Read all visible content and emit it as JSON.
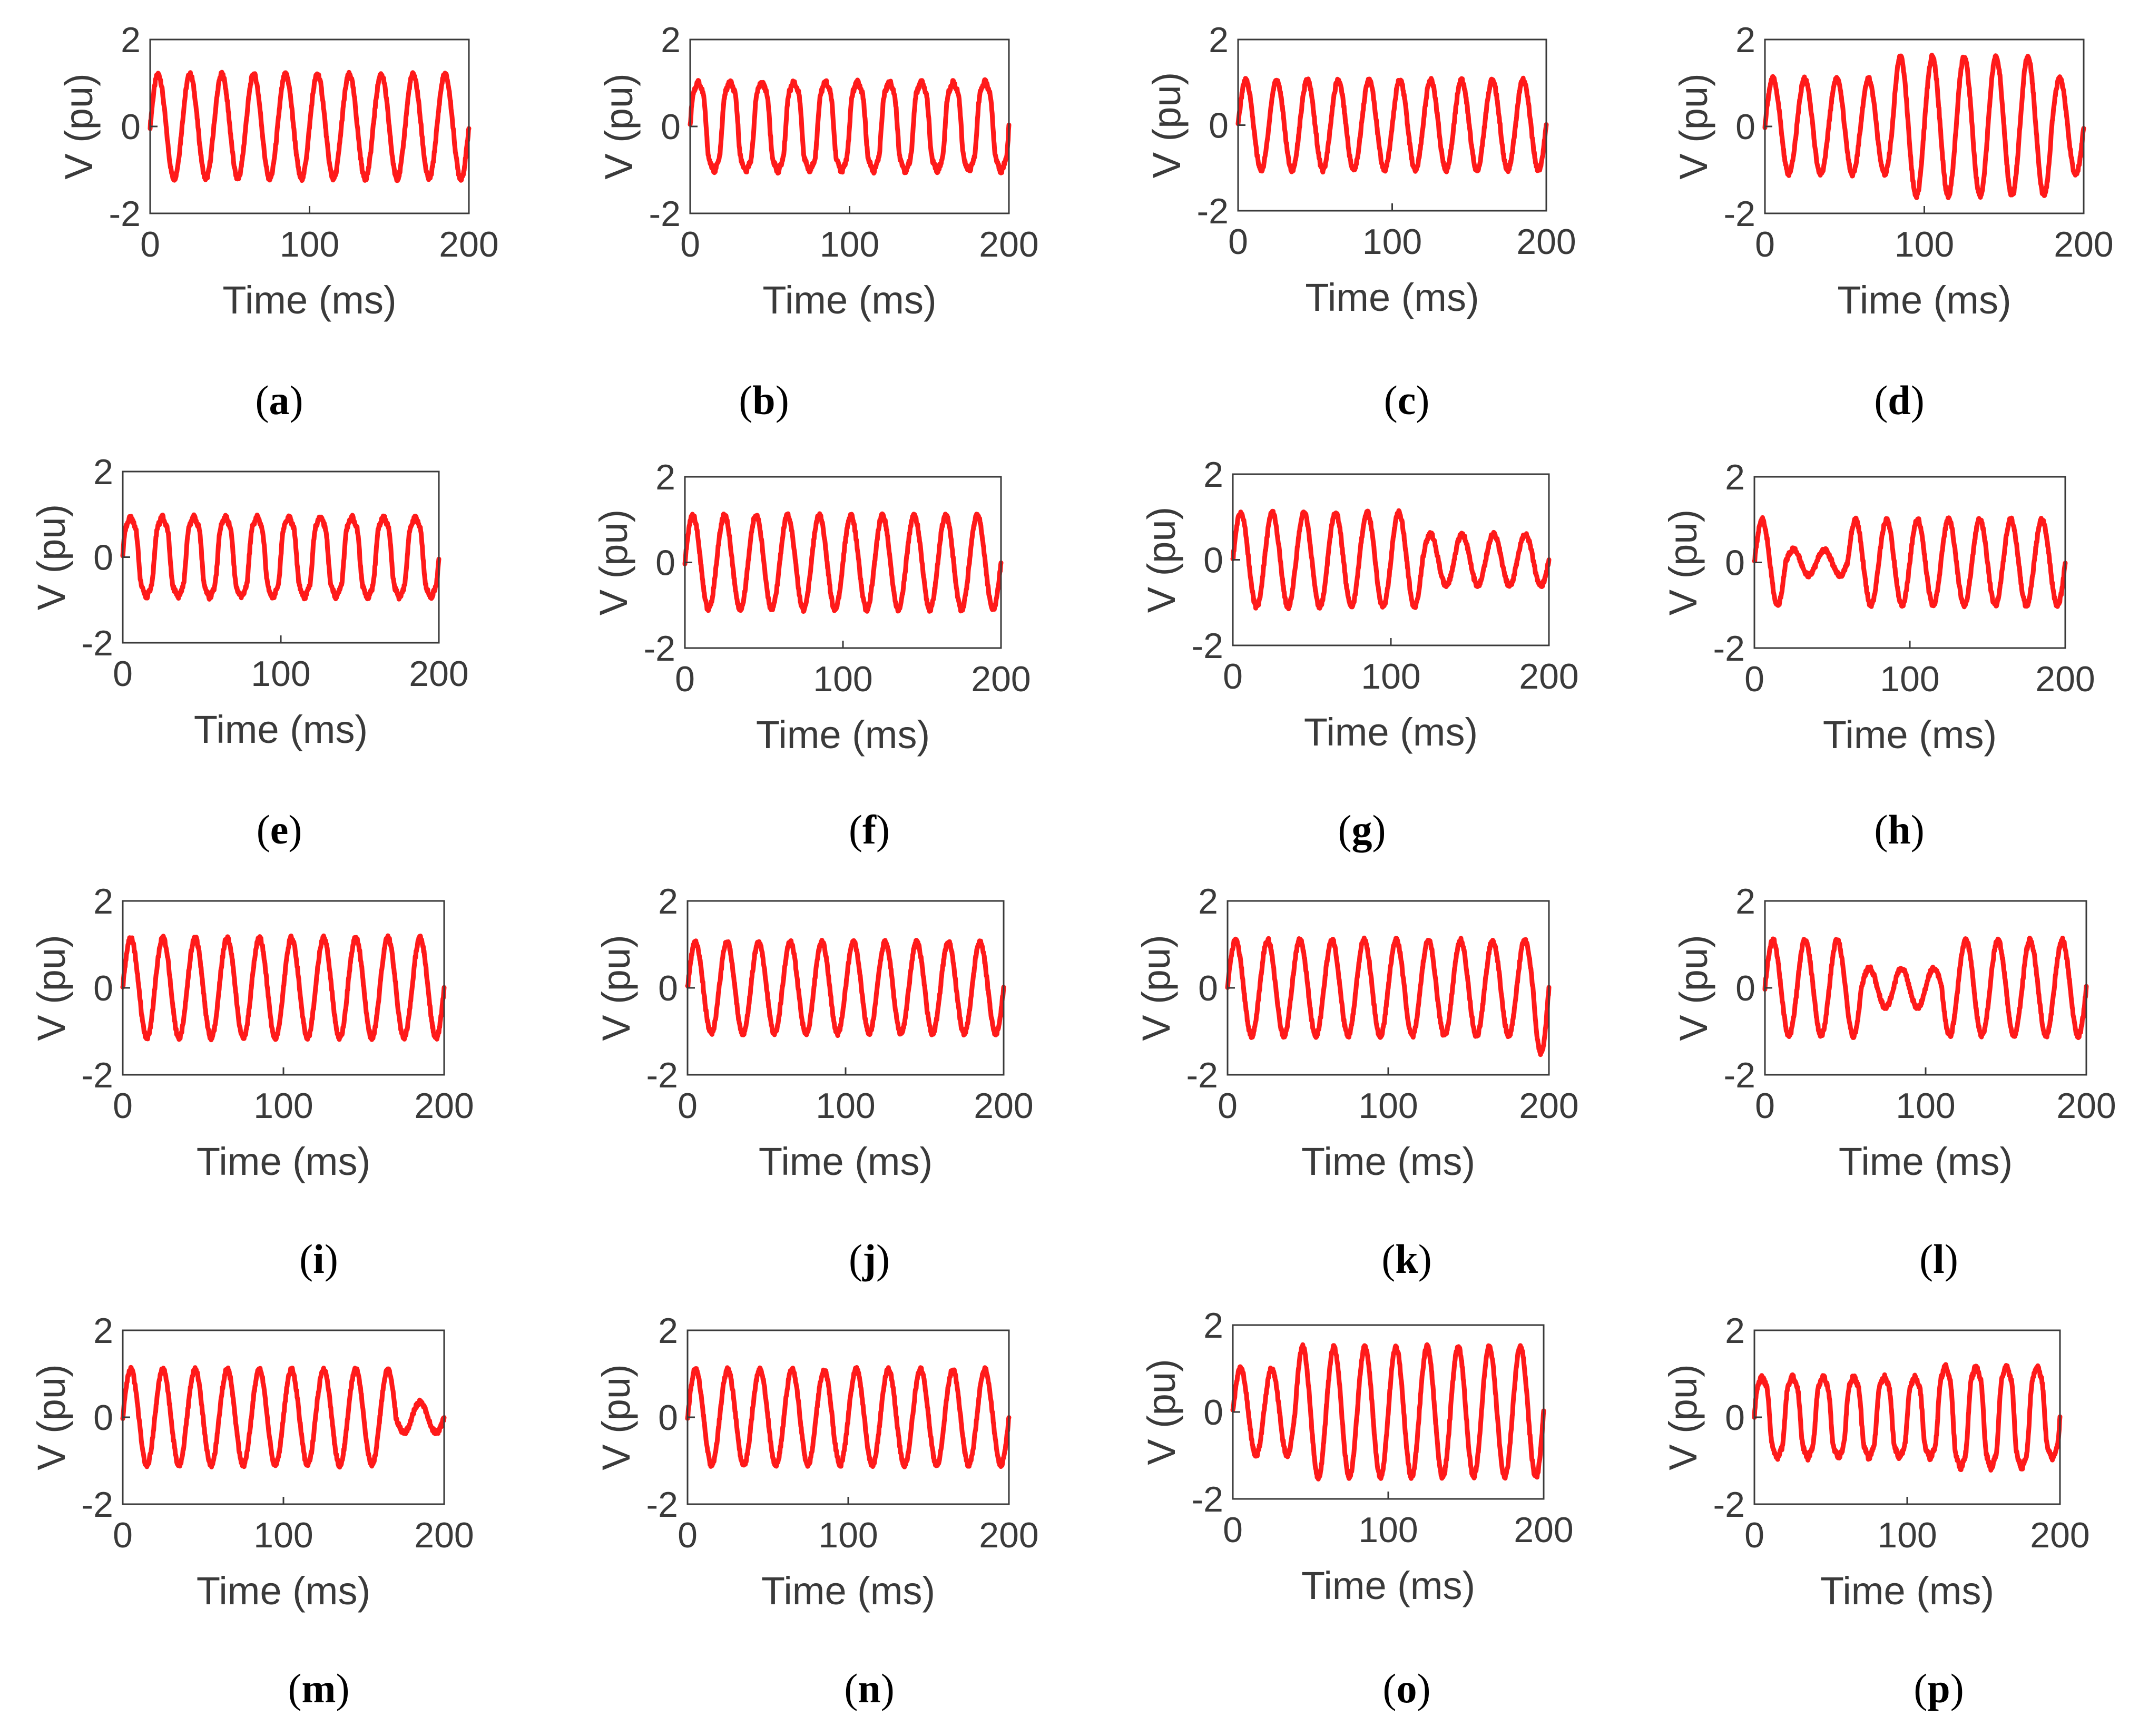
{
  "figure": {
    "line_color": "#ff1a1a",
    "axis_color": "#3a3a3a",
    "background": "#ffffff"
  },
  "chart_data": [
    {
      "panel": "a",
      "type": "line",
      "xlabel": "Time (ms)",
      "ylabel": "V (pu)",
      "xlim": [
        0,
        200
      ],
      "ylim": [
        -2,
        2
      ],
      "xticks": [
        "0",
        "100",
        "200"
      ],
      "yticks": [
        "-2",
        "0",
        "2"
      ],
      "grid": false,
      "waveform": "sine",
      "frequency_hz": 50,
      "amplitude_pu": 1.2,
      "event": "none"
    },
    {
      "panel": "b",
      "type": "line",
      "xlabel": "Time (ms)",
      "ylabel": "V (pu)",
      "xlim": [
        0,
        200
      ],
      "ylim": [
        -2,
        2
      ],
      "xticks": [
        "0",
        "100",
        "200"
      ],
      "yticks": [
        "-2",
        "0",
        "2"
      ],
      "grid": false,
      "waveform": "sine with harmonic distortion",
      "frequency_hz": 50,
      "amplitude_pu": 1.1,
      "event": "harmonics"
    },
    {
      "panel": "c",
      "type": "line",
      "xlabel": "Time (ms)",
      "ylabel": "V (pu)",
      "xlim": [
        0,
        200
      ],
      "ylim": [
        -2,
        2
      ],
      "xticks": [
        "0",
        "100",
        "200"
      ],
      "yticks": [
        "-2",
        "0",
        "2"
      ],
      "grid": false,
      "waveform": "sine",
      "frequency_hz": 50,
      "amplitude_pu": 1.05,
      "event": "none"
    },
    {
      "panel": "d",
      "type": "line",
      "xlabel": "Time (ms)",
      "ylabel": "V (pu)",
      "xlim": [
        0,
        200
      ],
      "ylim": [
        -2,
        2
      ],
      "xticks": [
        "0",
        "100",
        "200"
      ],
      "yticks": [
        "-2",
        "0",
        "2"
      ],
      "grid": false,
      "waveform": "sine with swell",
      "frequency_hz": 50,
      "amplitude_pu": 1.1,
      "event_amplitude_pu": 1.6,
      "event_start_ms": 80,
      "event_end_ms": 180,
      "event": "swell"
    },
    {
      "panel": "e",
      "type": "line",
      "xlabel": "Time (ms)",
      "ylabel": "V (pu)",
      "xlim": [
        0,
        200
      ],
      "ylim": [
        -2,
        2
      ],
      "xticks": [
        "0",
        "100",
        "200"
      ],
      "yticks": [
        "-2",
        "0",
        "2"
      ],
      "grid": false,
      "waveform": "distorted sine (flat-topped)",
      "frequency_hz": 50,
      "amplitude_pu": 1.0,
      "event": "harmonics"
    },
    {
      "panel": "f",
      "type": "line",
      "xlabel": "Time (ms)",
      "ylabel": "V (pu)",
      "xlim": [
        0,
        200
      ],
      "ylim": [
        -2,
        2
      ],
      "xticks": [
        "0",
        "100",
        "200"
      ],
      "yticks": [
        "-2",
        "0",
        "2"
      ],
      "grid": false,
      "waveform": "sine",
      "frequency_hz": 50,
      "amplitude_pu": 1.1,
      "event": "none"
    },
    {
      "panel": "g",
      "type": "line",
      "xlabel": "Time (ms)",
      "ylabel": "V (pu)",
      "xlim": [
        0,
        200
      ],
      "ylim": [
        -2,
        2
      ],
      "xticks": [
        "0",
        "100",
        "200"
      ],
      "yticks": [
        "-2",
        "0",
        "2"
      ],
      "grid": false,
      "waveform": "sine with sag",
      "frequency_hz": 50,
      "amplitude_pu": 1.1,
      "event_amplitude_pu": 0.6,
      "event_start_ms": 120,
      "event_end_ms": 200,
      "event": "sag"
    },
    {
      "panel": "h",
      "type": "line",
      "xlabel": "Time (ms)",
      "ylabel": "V (pu)",
      "xlim": [
        0,
        200
      ],
      "ylim": [
        -2,
        2
      ],
      "xticks": [
        "0",
        "100",
        "200"
      ],
      "yticks": [
        "-2",
        "0",
        "2"
      ],
      "grid": false,
      "waveform": "sine with deep sag",
      "frequency_hz": 50,
      "amplitude_pu": 1.0,
      "event_amplitude_pu": 0.3,
      "event_start_ms": 20,
      "event_end_ms": 60,
      "event": "sag"
    },
    {
      "panel": "i",
      "type": "line",
      "xlabel": "Time (ms)",
      "ylabel": "V (pu)",
      "xlim": [
        0,
        200
      ],
      "ylim": [
        -2,
        2
      ],
      "xticks": [
        "0",
        "100",
        "200"
      ],
      "yticks": [
        "-2",
        "0",
        "2"
      ],
      "grid": false,
      "waveform": "sine",
      "frequency_hz": 50,
      "amplitude_pu": 1.15,
      "event": "none"
    },
    {
      "panel": "j",
      "type": "line",
      "xlabel": "Time (ms)",
      "ylabel": "V (pu)",
      "xlim": [
        0,
        200
      ],
      "ylim": [
        -2,
        2
      ],
      "xticks": [
        "0",
        "100",
        "200"
      ],
      "yticks": [
        "-2",
        "0",
        "2"
      ],
      "grid": false,
      "waveform": "sine",
      "frequency_hz": 50,
      "amplitude_pu": 1.05,
      "event": "none"
    },
    {
      "panel": "k",
      "type": "line",
      "xlabel": "Time (ms)",
      "ylabel": "V (pu)",
      "xlim": [
        0,
        200
      ],
      "ylim": [
        -2,
        2
      ],
      "xticks": [
        "0",
        "100",
        "200"
      ],
      "yticks": [
        "-2",
        "0",
        "2"
      ],
      "grid": false,
      "waveform": "sine with notch",
      "frequency_hz": 50,
      "amplitude_pu": 1.1,
      "event_amplitude_pu": 1.5,
      "event_start_ms": 190,
      "event_end_ms": 200,
      "event": "transient"
    },
    {
      "panel": "l",
      "type": "line",
      "xlabel": "Time (ms)",
      "ylabel": "V (pu)",
      "xlim": [
        0,
        200
      ],
      "ylim": [
        -2,
        2
      ],
      "xticks": [
        "0",
        "100",
        "200"
      ],
      "yticks": [
        "-2",
        "0",
        "2"
      ],
      "grid": false,
      "waveform": "sine with sag",
      "frequency_hz": 50,
      "amplitude_pu": 1.1,
      "event_amplitude_pu": 0.45,
      "event_start_ms": 60,
      "event_end_ms": 110,
      "event": "sag"
    },
    {
      "panel": "m",
      "type": "line",
      "xlabel": "Time (ms)",
      "ylabel": "V (pu)",
      "xlim": [
        0,
        200
      ],
      "ylim": [
        -2,
        2
      ],
      "xticks": [
        "0",
        "100",
        "200"
      ],
      "yticks": [
        "-2",
        "0",
        "2"
      ],
      "grid": false,
      "waveform": "sine with sag",
      "frequency_hz": 50,
      "amplitude_pu": 1.1,
      "event_amplitude_pu": 0.35,
      "event_start_ms": 170,
      "event_end_ms": 200,
      "event": "sag"
    },
    {
      "panel": "n",
      "type": "line",
      "xlabel": "Time (ms)",
      "ylabel": "V (pu)",
      "xlim": [
        0,
        200
      ],
      "ylim": [
        -2,
        2
      ],
      "xticks": [
        "0",
        "100",
        "200"
      ],
      "yticks": [
        "-2",
        "0",
        "2"
      ],
      "grid": false,
      "waveform": "sine",
      "frequency_hz": 50,
      "amplitude_pu": 1.1,
      "event": "none"
    },
    {
      "panel": "o",
      "type": "line",
      "xlabel": "Time (ms)",
      "ylabel": "V (pu)",
      "xlim": [
        0,
        200
      ],
      "ylim": [
        -2,
        2
      ],
      "xticks": [
        "0",
        "100",
        "200"
      ],
      "yticks": [
        "-2",
        "0",
        "2"
      ],
      "grid": false,
      "waveform": "sine with swell",
      "frequency_hz": 50,
      "amplitude_pu": 1.0,
      "event_amplitude_pu": 1.5,
      "event_start_ms": 40,
      "event_end_ms": 200,
      "event": "swell"
    },
    {
      "panel": "p",
      "type": "line",
      "xlabel": "Time (ms)",
      "ylabel": "V (pu)",
      "xlim": [
        0,
        200
      ],
      "ylim": [
        -2,
        2
      ],
      "xticks": [
        "0",
        "100",
        "200"
      ],
      "yticks": [
        "-2",
        "0",
        "2"
      ],
      "grid": false,
      "waveform": "distorted sine with swell",
      "frequency_hz": 50,
      "amplitude_pu": 1.0,
      "event_amplitude_pu": 1.25,
      "event_start_ms": 120,
      "event_end_ms": 190,
      "event": "harmonics"
    }
  ],
  "captions": [
    {
      "open": "(",
      "letter": "a",
      "close": ")"
    },
    {
      "open": "(",
      "letter": "b",
      "close": ")"
    },
    {
      "open": "(",
      "letter": "c",
      "close": ")"
    },
    {
      "open": "(",
      "letter": "d",
      "close": ")"
    },
    {
      "open": "(",
      "letter": "e",
      "close": ")"
    },
    {
      "open": "(",
      "letter": "f",
      "close": ")"
    },
    {
      "open": "(",
      "letter": "g",
      "close": ")"
    },
    {
      "open": "(",
      "letter": "h",
      "close": ")"
    },
    {
      "open": "(",
      "letter": "i",
      "close": ")"
    },
    {
      "open": "(",
      "letter": "j",
      "close": ")"
    },
    {
      "open": "(",
      "letter": "k",
      "close": ")"
    },
    {
      "open": "(",
      "letter": "l",
      "close": ")"
    },
    {
      "open": "(",
      "letter": "m",
      "close": ")"
    },
    {
      "open": "(",
      "letter": "n",
      "close": ")"
    },
    {
      "open": "(",
      "letter": "o",
      "close": ")"
    },
    {
      "open": "(",
      "letter": "p",
      "close": ")"
    }
  ]
}
